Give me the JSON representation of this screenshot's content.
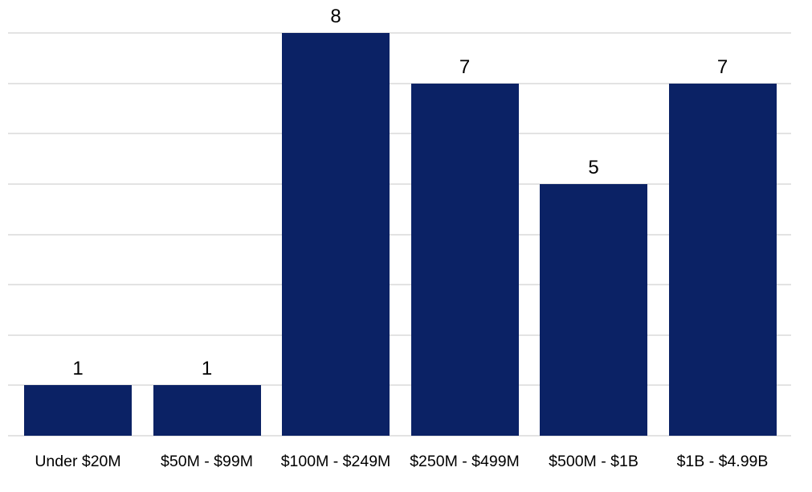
{
  "chart_data": {
    "type": "bar",
    "categories": [
      "Under $20M",
      "$50M - $99M",
      "$100M - $249M",
      "$250M - $499M",
      "$500M - $1B",
      "$1B - $4.99B"
    ],
    "values": [
      1,
      1,
      8,
      7,
      5,
      7
    ],
    "title": "",
    "xlabel": "",
    "ylabel": "",
    "ylim": [
      0,
      8
    ],
    "grid": "horizontal",
    "grid_interval": 1,
    "y_tick_labels_visible": false,
    "legend": "none",
    "data_labels": "above-bars",
    "colors": {
      "bar": "#0b2265",
      "gridline": "#e3e3e3",
      "label_text": "#000000",
      "background": "#ffffff"
    }
  }
}
